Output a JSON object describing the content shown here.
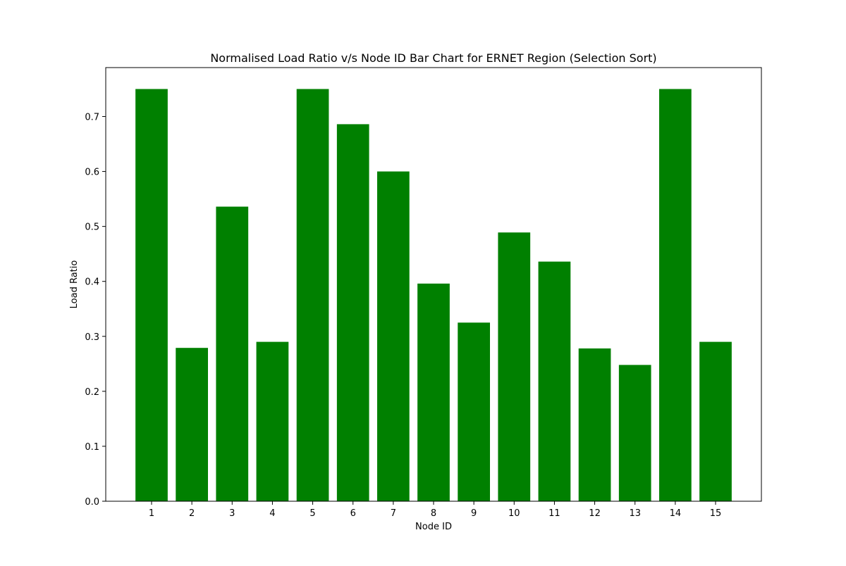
{
  "chart_data": {
    "type": "bar",
    "title": "Normalised Load Ratio v/s Node ID Bar Chart for ERNET Region (Selection Sort)",
    "xlabel": "Node ID",
    "ylabel": "Load Ratio",
    "categories": [
      "1",
      "2",
      "3",
      "4",
      "5",
      "6",
      "7",
      "8",
      "9",
      "10",
      "11",
      "12",
      "13",
      "14",
      "15"
    ],
    "values": [
      0.75,
      0.279,
      0.536,
      0.29,
      0.75,
      0.686,
      0.6,
      0.396,
      0.325,
      0.489,
      0.436,
      0.278,
      0.248,
      0.75,
      0.29
    ],
    "ylim": [
      0,
      0.789
    ],
    "yticks": [
      "0.0",
      "0.1",
      "0.2",
      "0.3",
      "0.4",
      "0.5",
      "0.6",
      "0.7"
    ],
    "bar_color": "#008000",
    "grid": false,
    "legend": "none"
  }
}
